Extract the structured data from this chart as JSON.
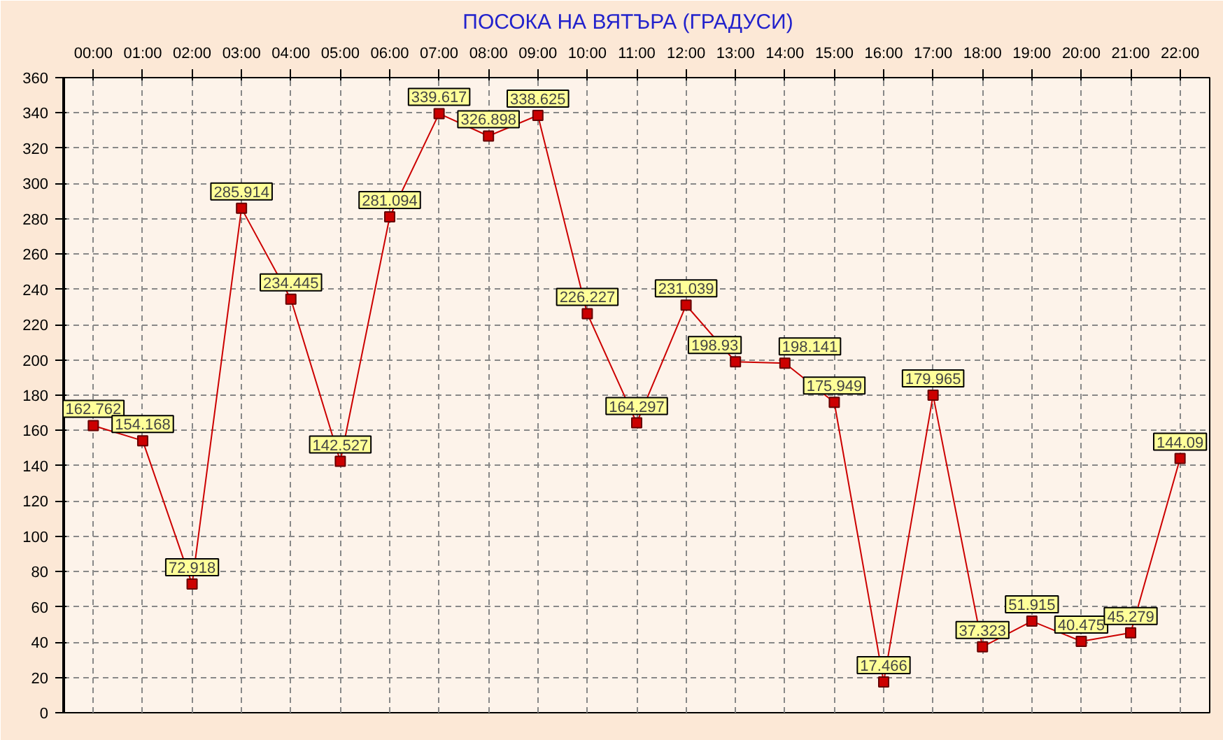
{
  "chart_data": {
    "type": "line",
    "title": "ПОСОКА НА ВЯТЪРА    (ГРАДУСИ)",
    "categories": [
      "00:00",
      "01:00",
      "02:00",
      "03:00",
      "04:00",
      "05:00",
      "06:00",
      "07:00",
      "08:00",
      "09:00",
      "10:00",
      "11:00",
      "12:00",
      "13:00",
      "14:00",
      "15:00",
      "16:00",
      "17:00",
      "18:00",
      "19:00",
      "20:00",
      "21:00",
      "22:00"
    ],
    "series": [
      {
        "color": "#cc0000",
        "values": [
          162.762,
          154.168,
          72.918,
          285.914,
          234.445,
          142.527,
          281.094,
          339.617,
          326.898,
          338.625,
          226.227,
          164.297,
          231.039,
          198.93,
          198.141,
          175.949,
          17.466,
          179.965,
          37.323,
          51.915,
          40.475,
          45.279,
          144.09
        ]
      }
    ],
    "ylim": [
      0,
      360
    ],
    "yticks": [
      0,
      20,
      40,
      60,
      80,
      100,
      120,
      140,
      160,
      180,
      200,
      220,
      240,
      260,
      280,
      300,
      320,
      340,
      360
    ],
    "grid": true,
    "marker": "square",
    "line_style": "solid",
    "data_labels": true
  }
}
